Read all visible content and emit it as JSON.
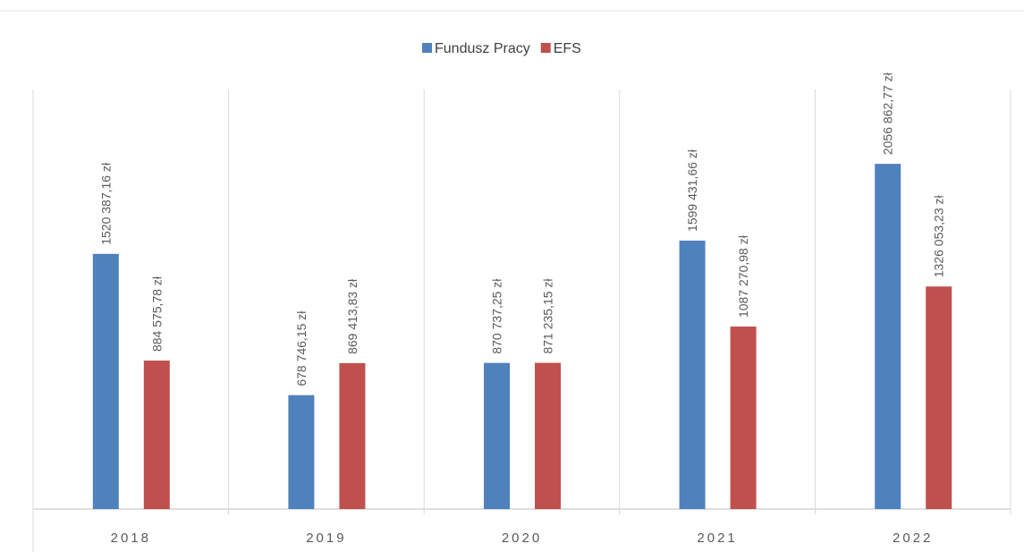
{
  "chart_data": {
    "type": "bar",
    "categories": [
      "2018",
      "2019",
      "2020",
      "2021",
      "2022"
    ],
    "series": [
      {
        "name": "Fundusz Pracy",
        "color": "#4f81bd",
        "values": [
          1520387.16,
          678746.15,
          870737.25,
          1599431.66,
          2056862.77
        ],
        "value_labels": [
          "1520 387,16 zł",
          "678 746,15 zł",
          "870 737,25 zł",
          "1599 431,66 zł",
          "2056 862,77 zł"
        ]
      },
      {
        "name": "EFS",
        "color": "#c0504d",
        "values": [
          884575.78,
          869413.83,
          871235.15,
          1087270.98,
          1326053.23
        ],
        "value_labels": [
          "884 575,78 zł",
          "869 413,83 zł",
          "871 235,15 zł",
          "1087 270,98 zł",
          "1326 053,23 zł"
        ]
      }
    ],
    "ylim": [
      0,
      2500000
    ],
    "legend": "top"
  }
}
